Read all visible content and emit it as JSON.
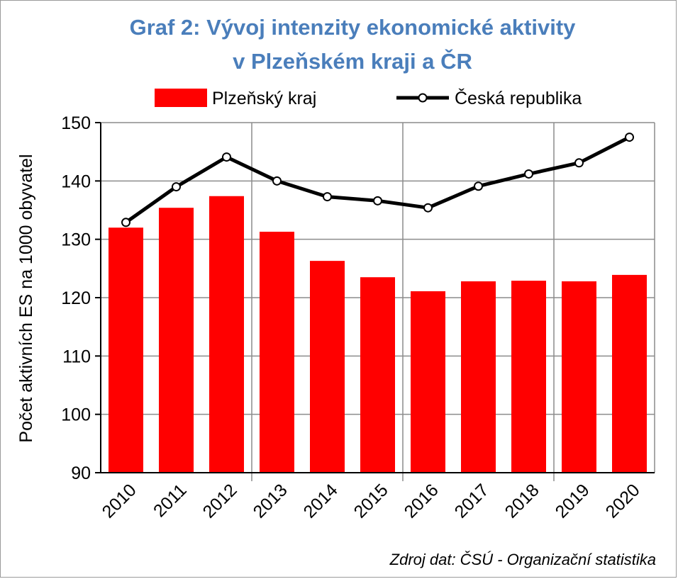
{
  "chart_data": {
    "type": "bar",
    "title_lines": [
      "Graf 2: Vývoj intenzity ekonomické aktivity",
      "v Plzeňském kraji a ČR"
    ],
    "ylabel": "Počet aktivních ES na 1000 obyvatel",
    "xlabel": "",
    "categories": [
      "2010",
      "2011",
      "2012",
      "2013",
      "2014",
      "2015",
      "2016",
      "2017",
      "2018",
      "2019",
      "2020"
    ],
    "ylim": [
      90,
      150
    ],
    "yticks": [
      "90",
      "100",
      "110",
      "120",
      "130",
      "140",
      "150"
    ],
    "series": [
      {
        "name": "Plzeňský kraj",
        "type": "bar",
        "color": "#ff0000",
        "values": [
          132.0,
          135.4,
          137.4,
          131.3,
          126.3,
          123.5,
          121.1,
          122.8,
          122.9,
          122.8,
          123.9
        ]
      },
      {
        "name": "Česká republika",
        "type": "line",
        "color": "#000000",
        "values": [
          132.9,
          139.0,
          144.1,
          140.0,
          137.3,
          136.6,
          135.4,
          139.1,
          141.2,
          143.1,
          147.5
        ]
      }
    ],
    "grid": true,
    "legend_position": "top",
    "source_note": "Zdroj dat: ČSÚ - Organizační statistika"
  }
}
